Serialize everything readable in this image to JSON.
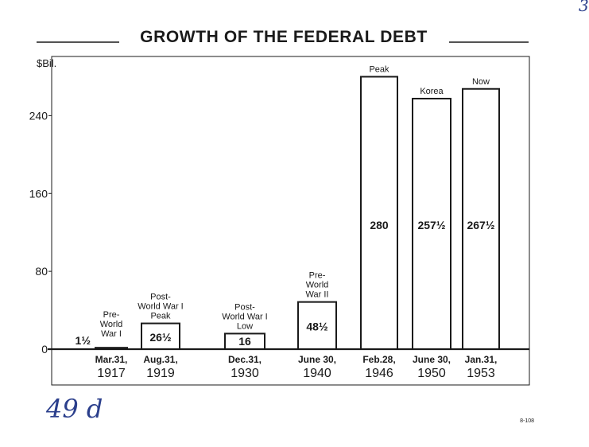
{
  "page": {
    "corner_mark": "3",
    "handwritten_note": "49 d",
    "code": "8-108"
  },
  "chart_data": {
    "type": "bar",
    "title": "GROWTH OF THE FEDERAL DEBT",
    "ylabel": "$Bil.",
    "ylim": [
      0,
      300
    ],
    "yticks": [
      0,
      80,
      160,
      240
    ],
    "grid": false,
    "categories": [
      "Mar.31, 1917",
      "Aug.31, 1919",
      "Dec.31, 1930",
      "June 30, 1940",
      "Feb.28, 1946",
      "June 30, 1950",
      "Jan.31, 1953"
    ],
    "values": [
      1.5,
      26.5,
      16,
      48.5,
      280,
      257.5,
      267.5
    ],
    "bars": [
      {
        "date": "Mar.31,",
        "year": "1917",
        "value": 1.5,
        "label": "1½",
        "annotation": [
          "Pre-",
          "World",
          "War I"
        ]
      },
      {
        "date": "Aug.31,",
        "year": "1919",
        "value": 26.5,
        "label": "26½",
        "annotation": [
          "Post-",
          "World War I",
          "Peak"
        ]
      },
      {
        "date": "Dec.31,",
        "year": "1930",
        "value": 16,
        "label": "16",
        "annotation": [
          "Post-",
          "World War I",
          "Low"
        ]
      },
      {
        "date": "June 30,",
        "year": "1940",
        "value": 48.5,
        "label": "48½",
        "annotation": [
          "Pre-",
          "World",
          "War II"
        ]
      },
      {
        "date": "Feb.28,",
        "year": "1946",
        "value": 280,
        "label": "280",
        "annotation": [
          "Peak"
        ]
      },
      {
        "date": "June 30,",
        "year": "1950",
        "value": 257.5,
        "label": "257½",
        "annotation": [
          "Korea"
        ]
      },
      {
        "date": "Jan.31,",
        "year": "1953",
        "value": 267.5,
        "label": "267½",
        "annotation": [
          "Now"
        ]
      }
    ],
    "colors": {
      "ink": "#1a1a1a",
      "bar_fill": "#ffffff",
      "handwriting": "#2b3f8c"
    }
  }
}
